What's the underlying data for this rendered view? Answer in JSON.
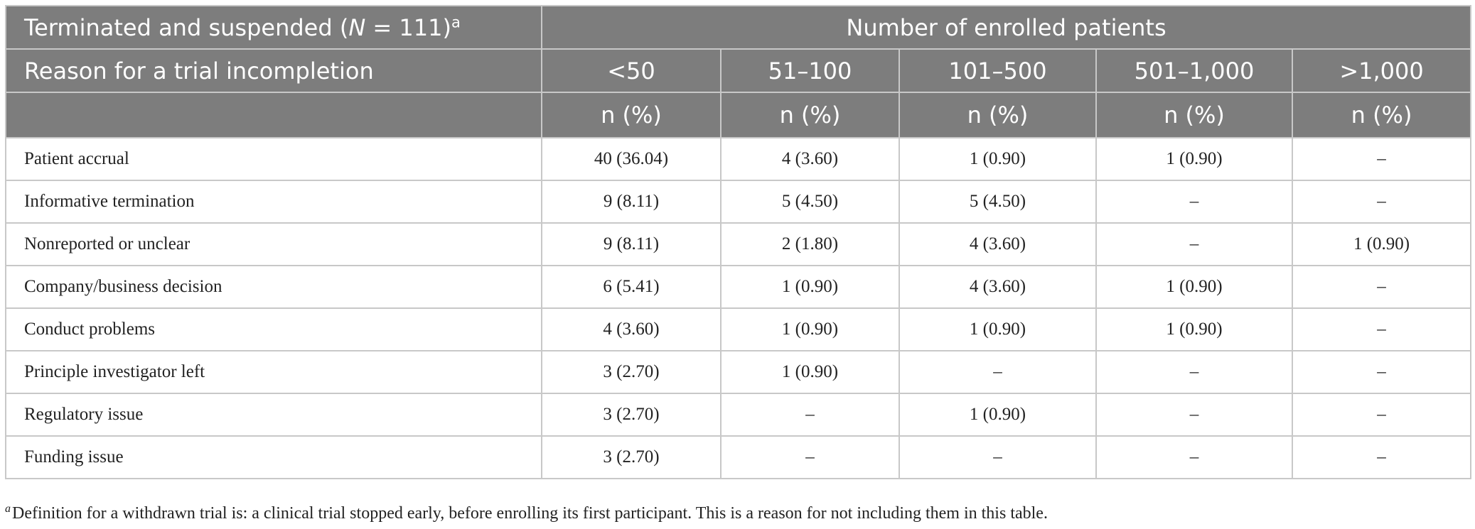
{
  "header": {
    "group_label_prefix": "Terminated and suspended (",
    "group_label_n": "N",
    "group_label_suffix": " = 111)",
    "group_label_sup": "a",
    "spanning_header": "Number of enrolled patients",
    "row_header": "Reason for a trial incompletion",
    "columns": [
      "<50",
      "51–100",
      "101–500",
      "501–1,000",
      ">1,000"
    ],
    "unit_label": "n (%)"
  },
  "rows": [
    {
      "reason": "Patient accrual",
      "values": [
        "40 (36.04)",
        "4 (3.60)",
        "1 (0.90)",
        "1 (0.90)",
        "–"
      ]
    },
    {
      "reason": "Informative termination",
      "values": [
        "9 (8.11)",
        "5 (4.50)",
        "5 (4.50)",
        "–",
        "–"
      ]
    },
    {
      "reason": "Nonreported or unclear",
      "values": [
        "9 (8.11)",
        "2 (1.80)",
        "4 (3.60)",
        "–",
        "1 (0.90)"
      ]
    },
    {
      "reason": "Company/business decision",
      "values": [
        "6 (5.41)",
        "1 (0.90)",
        "4 (3.60)",
        "1 (0.90)",
        "–"
      ]
    },
    {
      "reason": "Conduct problems",
      "values": [
        "4 (3.60)",
        "1 (0.90)",
        "1 (0.90)",
        "1 (0.90)",
        "–"
      ]
    },
    {
      "reason": "Principle investigator left",
      "values": [
        "3 (2.70)",
        "1 (0.90)",
        "–",
        "–",
        "–"
      ]
    },
    {
      "reason": "Regulatory issue",
      "values": [
        "3 (2.70)",
        "–",
        "1 (0.90)",
        "–",
        "–"
      ]
    },
    {
      "reason": "Funding issue",
      "values": [
        "3 (2.70)",
        "–",
        "–",
        "–",
        "–"
      ]
    }
  ],
  "footnote": {
    "marker": "a",
    "text": "Definition for a withdrawn trial is: a clinical trial stopped early, before enrolling its first participant. This is a reason for not including them in this table."
  },
  "colors": {
    "header_bg": "#7d7d7d",
    "header_text": "#ffffff",
    "grid": "#c8c8c8",
    "body_text": "#222222"
  }
}
